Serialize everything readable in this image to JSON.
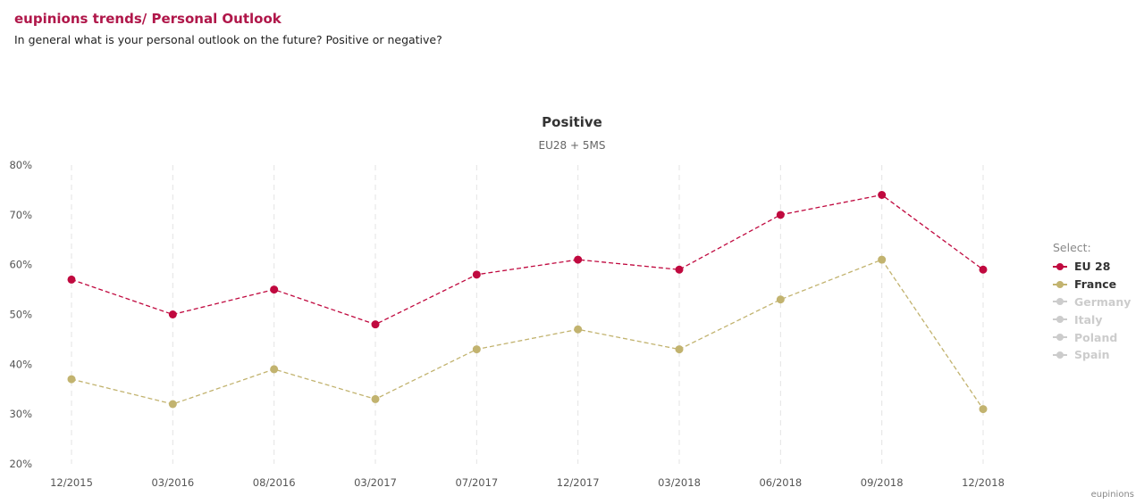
{
  "header": {
    "title": "eupinions trends/ Personal Outlook",
    "subtitle": "In general what is your personal outlook on the future? Positive or negative?"
  },
  "credit": "eupinions",
  "chart_data": {
    "type": "line",
    "title": "Positive",
    "subtitle": "EU28 + 5MS",
    "categories": [
      "12/2015",
      "03/2016",
      "08/2016",
      "03/2017",
      "07/2017",
      "12/2017",
      "03/2018",
      "06/2018",
      "09/2018",
      "12/2018"
    ],
    "y_tick_labels": [
      "80%",
      "70%",
      "60%",
      "50%",
      "40%",
      "30%",
      "20%"
    ],
    "ylim": [
      20,
      80
    ],
    "y_unit": "%",
    "grid": "vertical dashed",
    "legend_placement": "right",
    "series": [
      {
        "name": "EU 28",
        "color": "#c0093f",
        "visible": true,
        "values": [
          57,
          50,
          55,
          48,
          58,
          61,
          59,
          70,
          74,
          59
        ]
      },
      {
        "name": "France",
        "color": "#c2b36f",
        "visible": true,
        "values": [
          37,
          32,
          39,
          33,
          43,
          47,
          43,
          53,
          61,
          31
        ]
      }
    ]
  },
  "legend": {
    "title": "Select:",
    "items": [
      {
        "label": "EU 28",
        "color": "#c0093f",
        "text_color": "#333333",
        "active": true
      },
      {
        "label": "France",
        "color": "#c2b36f",
        "text_color": "#333333",
        "active": true
      },
      {
        "label": "Germany",
        "color": "#cccccc",
        "text_color": "#cccccc",
        "active": false
      },
      {
        "label": "Italy",
        "color": "#cccccc",
        "text_color": "#cccccc",
        "active": false
      },
      {
        "label": "Poland",
        "color": "#cccccc",
        "text_color": "#cccccc",
        "active": false
      },
      {
        "label": "Spain",
        "color": "#cccccc",
        "text_color": "#cccccc",
        "active": false
      }
    ]
  }
}
